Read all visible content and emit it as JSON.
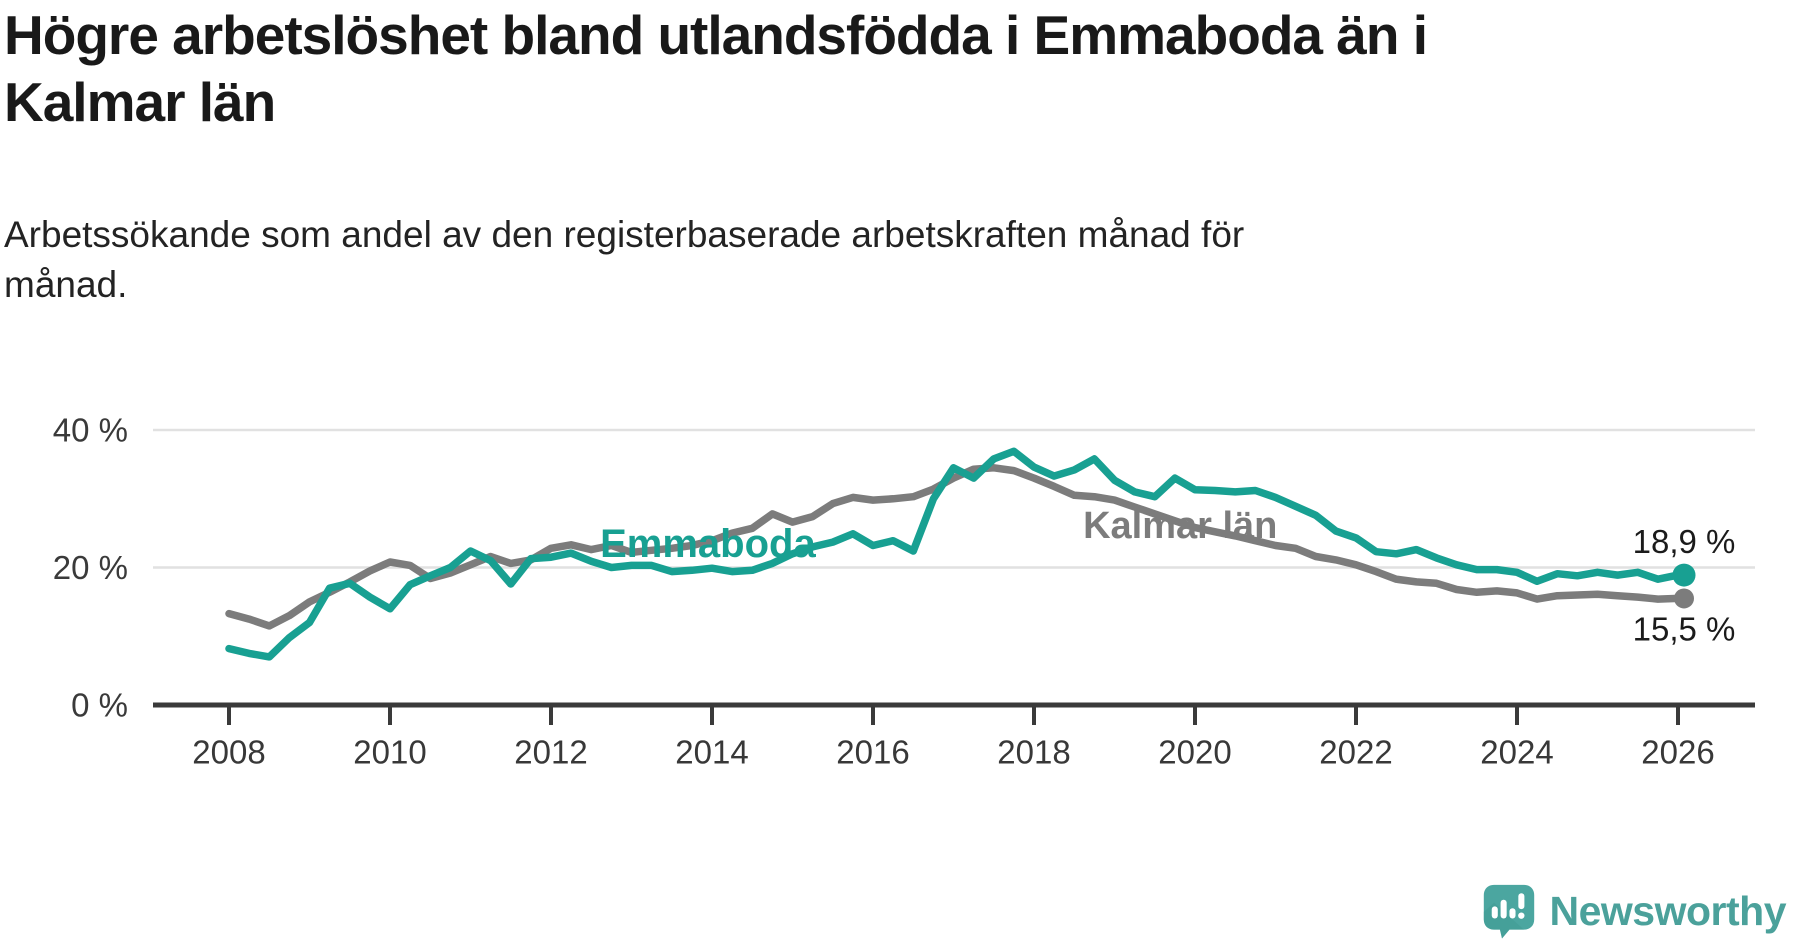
{
  "header": {
    "title_line1": "Högre arbetslöshet bland utlandsfödda i Emmaboda än i",
    "title_line2": "Kalmar län",
    "subtitle_line1": "Arbetssökande som andel av den registerbaserade arbetskraften månad för",
    "subtitle_line2": "månad."
  },
  "footer": {
    "brand": "Newsworthy"
  },
  "colors": {
    "emmaboda": "#18A092",
    "kalmar": "#7C7C7C",
    "grid": "#E1E1E1",
    "axis": "#3A3A3A",
    "value_label": "#1B1B1B",
    "brand_teal": "#4BA6A0"
  },
  "chart_data": {
    "type": "line",
    "title": "Högre arbetslöshet bland utlandsfödda i Emmaboda än i Kalmar län",
    "subtitle": "Arbetssökande som andel av den registerbaserade arbetskraften månad för månad.",
    "xlabel": "",
    "ylabel": "",
    "xlim": [
      2007.05,
      2026.95
    ],
    "ylim": [
      0,
      40
    ],
    "grid": "horizontal-only",
    "legend": "inline-labels",
    "x": [
      2008,
      2008.25,
      2008.5,
      2008.75,
      2009,
      2009.25,
      2009.5,
      2009.75,
      2010,
      2010.25,
      2010.5,
      2010.75,
      2011,
      2011.25,
      2011.5,
      2011.75,
      2012,
      2012.25,
      2012.5,
      2012.75,
      2013,
      2013.25,
      2013.5,
      2013.75,
      2014,
      2014.25,
      2014.5,
      2014.75,
      2015,
      2015.25,
      2015.5,
      2015.75,
      2016,
      2016.25,
      2016.5,
      2016.75,
      2017,
      2017.25,
      2017.5,
      2017.75,
      2018,
      2018.25,
      2018.5,
      2018.75,
      2019,
      2019.25,
      2019.5,
      2019.75,
      2020,
      2020.25,
      2020.5,
      2020.75,
      2021,
      2021.25,
      2021.5,
      2021.75,
      2022,
      2022.25,
      2022.5,
      2022.75,
      2023,
      2023.25,
      2023.5,
      2023.75,
      2024,
      2024.25,
      2024.5,
      2024.75,
      2025,
      2025.25,
      2025.5,
      2025.75,
      2026
    ],
    "series": [
      {
        "name": "Emmaboda",
        "color": "#18A092",
        "end_label": "18,9 %",
        "end_value": 18.9,
        "values": [
          8.2,
          7.5,
          7.0,
          9.8,
          12.0,
          17.0,
          17.7,
          15.7,
          14.0,
          17.5,
          18.8,
          20.0,
          22.4,
          21.0,
          17.6,
          21.3,
          21.5,
          22.1,
          20.9,
          20.0,
          20.3,
          20.3,
          19.4,
          19.6,
          19.9,
          19.4,
          19.6,
          20.6,
          22.0,
          23.0,
          23.7,
          24.9,
          23.2,
          23.9,
          22.4,
          30.0,
          34.5,
          33.0,
          35.8,
          36.9,
          34.6,
          33.3,
          34.2,
          35.8,
          32.7,
          31.0,
          30.3,
          33.0,
          31.3,
          31.2,
          31.0,
          31.2,
          30.2,
          28.9,
          27.6,
          25.3,
          24.3,
          22.3,
          22.0,
          22.6,
          21.4,
          20.4,
          19.7,
          19.7,
          19.3,
          18.0,
          19.1,
          18.8,
          19.3,
          18.9,
          19.3,
          18.3,
          18.9
        ]
      },
      {
        "name": "Kalmar län",
        "color": "#7C7C7C",
        "end_label": "15,5 %",
        "end_value": 15.5,
        "values": [
          13.3,
          12.5,
          11.5,
          13.0,
          15.0,
          16.4,
          17.9,
          19.5,
          20.8,
          20.3,
          18.4,
          19.2,
          20.4,
          21.6,
          20.6,
          21.1,
          22.8,
          23.3,
          22.6,
          23.2,
          22.2,
          22.5,
          22.8,
          23.2,
          23.9,
          25.0,
          25.7,
          27.8,
          26.6,
          27.4,
          29.3,
          30.2,
          29.8,
          30.0,
          30.3,
          31.4,
          33.0,
          34.3,
          34.5,
          34.1,
          33.0,
          31.8,
          30.5,
          30.3,
          29.8,
          28.8,
          27.8,
          26.8,
          25.8,
          25.2,
          24.6,
          23.9,
          23.2,
          22.8,
          21.6,
          21.1,
          20.4,
          19.4,
          18.3,
          17.9,
          17.7,
          16.8,
          16.4,
          16.6,
          16.3,
          15.4,
          15.9,
          16.0,
          16.1,
          15.9,
          15.7,
          15.4,
          15.5
        ]
      }
    ],
    "y_ticks": [
      {
        "value": 0,
        "label": "0 %"
      },
      {
        "value": 20,
        "label": "20 %"
      },
      {
        "value": 40,
        "label": "40 %"
      }
    ],
    "x_ticks": [
      {
        "value": 2008,
        "label": "2008"
      },
      {
        "value": 2010,
        "label": "2010"
      },
      {
        "value": 2012,
        "label": "2012"
      },
      {
        "value": 2014,
        "label": "2014"
      },
      {
        "value": 2016,
        "label": "2016"
      },
      {
        "value": 2018,
        "label": "2018"
      },
      {
        "value": 2020,
        "label": "2020"
      },
      {
        "value": 2022,
        "label": "2022"
      },
      {
        "value": 2024,
        "label": "2024"
      },
      {
        "value": 2026,
        "label": "2026"
      }
    ],
    "series_labels": [
      {
        "text": "Emmaboda",
        "x": 2012.61,
        "y": 21.5,
        "color": "#18A092",
        "font_size": 40
      },
      {
        "text": "Kalmar län",
        "x": 2018.61,
        "y": 24.3,
        "color": "#7C7C7C",
        "font_size": 38
      }
    ]
  }
}
